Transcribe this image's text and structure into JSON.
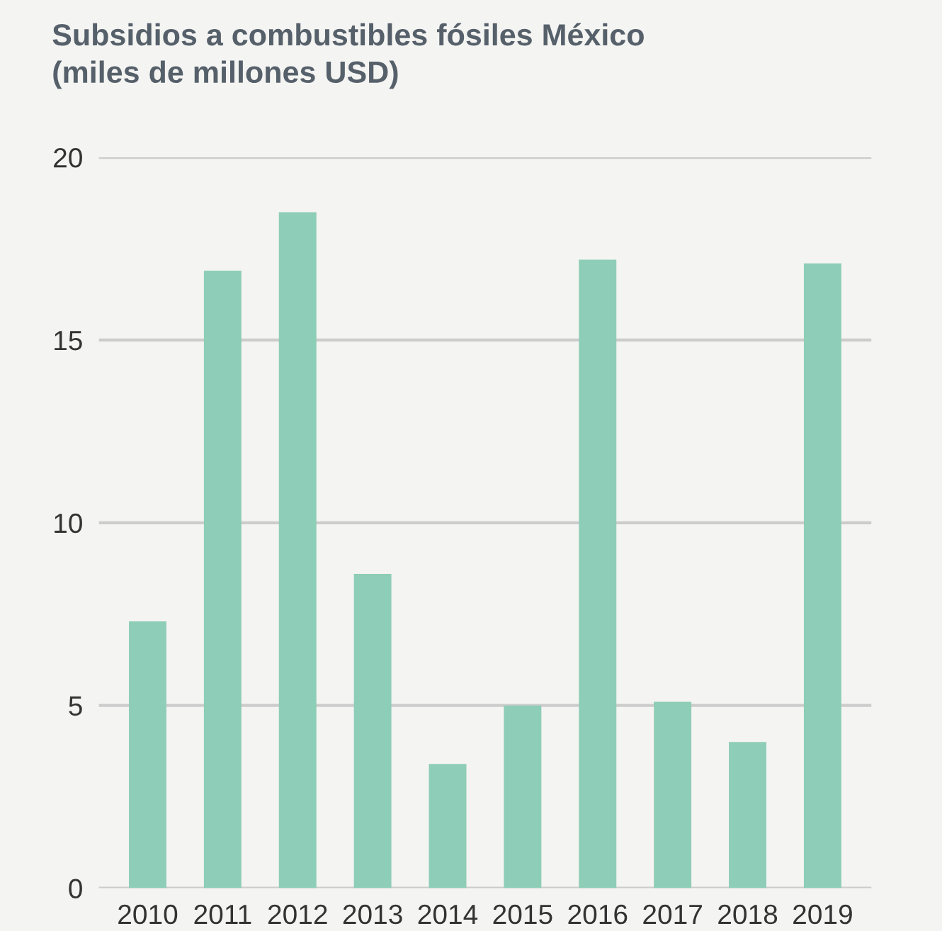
{
  "chart_data": {
    "type": "bar",
    "title": "Subsidios a combustibles fósiles México\n(miles de millones USD)",
    "categories": [
      "2010",
      "2011",
      "2012",
      "2013",
      "2014",
      "2015",
      "2016",
      "2017",
      "2018",
      "2019"
    ],
    "values": [
      7.3,
      16.9,
      18.5,
      8.6,
      3.4,
      5.0,
      17.2,
      5.1,
      4.0,
      17.1
    ],
    "color": "#8ecdb8",
    "ylim": [
      0,
      20
    ],
    "yticks": [
      0,
      5,
      10,
      15,
      20
    ],
    "grid": "y",
    "legend": false
  }
}
